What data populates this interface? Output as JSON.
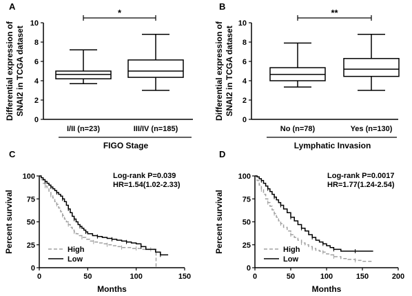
{
  "chart_data": [
    {
      "panel": "A",
      "type": "box",
      "ylabel": [
        "Differential expression of",
        "SNAI2 in TCGA dataset"
      ],
      "ylim": [
        0,
        10
      ],
      "yticks": [
        0,
        2,
        4,
        6,
        8,
        10
      ],
      "categories": [
        "I/II (n=23)",
        "III/IV (n=185)"
      ],
      "group_label": "FIGO Stage",
      "significance": "*",
      "boxes": [
        {
          "min": 3.7,
          "q1": 4.2,
          "median": 4.65,
          "q3": 5.0,
          "max": 7.2
        },
        {
          "min": 3.0,
          "q1": 4.35,
          "median": 5.0,
          "q3": 6.15,
          "max": 8.8
        }
      ]
    },
    {
      "panel": "B",
      "type": "box",
      "ylabel": [
        "Differential expression of",
        "SNAI2 in TCGA dataset"
      ],
      "ylim": [
        0,
        10
      ],
      "yticks": [
        0,
        2,
        4,
        6,
        8,
        10
      ],
      "categories": [
        "No (n=78)",
        "Yes (n=130)"
      ],
      "group_label": "Lymphatic Invasion",
      "significance": "**",
      "boxes": [
        {
          "min": 3.35,
          "q1": 4.0,
          "median": 4.65,
          "q3": 5.35,
          "max": 7.9
        },
        {
          "min": 3.0,
          "q1": 4.45,
          "median": 5.2,
          "q3": 6.3,
          "max": 8.8
        }
      ]
    },
    {
      "panel": "C",
      "type": "line",
      "xlabel": "Months",
      "ylabel": "Percent survival",
      "xlim": [
        0,
        150
      ],
      "ylim": [
        0,
        100
      ],
      "xticks": [
        0,
        50,
        100,
        150
      ],
      "yticks": [
        0,
        25,
        50,
        75,
        100
      ],
      "annotation": [
        "Log-rank P=0.039",
        "HR=1.54(1.02-2.33)"
      ],
      "legend_position": "bottom-left",
      "series": [
        {
          "name": "High",
          "color": "#a0a0a0",
          "dashed": true,
          "x": [
            0,
            2,
            4,
            6,
            8,
            10,
            12,
            14,
            16,
            18,
            20,
            22,
            24,
            26,
            28,
            30,
            32,
            34,
            36,
            38,
            40,
            44,
            48,
            52,
            56,
            60,
            65,
            70,
            75,
            80,
            85,
            90,
            95,
            100,
            105,
            110,
            115,
            120,
            120.5
          ],
          "y": [
            100,
            96,
            92,
            89,
            86,
            82,
            79,
            76,
            72,
            69,
            65,
            61,
            57,
            53,
            50,
            47,
            44,
            41,
            39,
            37,
            35,
            33,
            31,
            29,
            28,
            27,
            26,
            25,
            24,
            23,
            22,
            22,
            21,
            21,
            20,
            20,
            20,
            20,
            0
          ]
        },
        {
          "name": "Low",
          "color": "#000000",
          "dashed": false,
          "x": [
            0,
            2,
            4,
            6,
            8,
            10,
            12,
            14,
            16,
            18,
            20,
            22,
            24,
            26,
            28,
            30,
            32,
            34,
            36,
            38,
            40,
            42,
            44,
            46,
            48,
            50,
            55,
            60,
            65,
            70,
            75,
            80,
            85,
            90,
            95,
            100,
            105,
            110,
            120,
            125,
            133
          ],
          "y": [
            100,
            98,
            96,
            94,
            92,
            90,
            88,
            86,
            84,
            82,
            80,
            78,
            75,
            72,
            68,
            64,
            60,
            56,
            53,
            50,
            47,
            45,
            43,
            41,
            39,
            37,
            35,
            34,
            33,
            32,
            31,
            30,
            29,
            28,
            27,
            26,
            23,
            20,
            17,
            14,
            14
          ]
        }
      ]
    },
    {
      "panel": "D",
      "type": "line",
      "xlabel": "Months",
      "ylabel": "Percent survival",
      "xlim": [
        0,
        200
      ],
      "ylim": [
        0,
        100
      ],
      "xticks": [
        0,
        50,
        100,
        150,
        200
      ],
      "yticks": [
        0,
        25,
        50,
        75,
        100
      ],
      "annotation": [
        "Log-rank P=0.0017",
        "HR=1.77(1.24-2.54)"
      ],
      "legend_position": "bottom-left",
      "series": [
        {
          "name": "High",
          "color": "#a0a0a0",
          "dashed": true,
          "x": [
            0,
            3,
            6,
            9,
            12,
            15,
            18,
            21,
            24,
            27,
            30,
            33,
            36,
            40,
            45,
            50,
            55,
            60,
            65,
            70,
            75,
            80,
            85,
            90,
            95,
            100,
            105,
            110,
            120,
            130,
            140,
            150,
            165
          ],
          "y": [
            100,
            95,
            90,
            85,
            80,
            75,
            71,
            67,
            63,
            59,
            55,
            51,
            48,
            44,
            40,
            36,
            33,
            30,
            27,
            25,
            23,
            21,
            19,
            18,
            17,
            15,
            14,
            12,
            10,
            9,
            8,
            7,
            7
          ]
        },
        {
          "name": "Low",
          "color": "#000000",
          "dashed": false,
          "x": [
            0,
            3,
            6,
            9,
            12,
            15,
            18,
            21,
            24,
            27,
            30,
            33,
            36,
            40,
            45,
            50,
            55,
            60,
            65,
            70,
            75,
            80,
            85,
            90,
            95,
            100,
            105,
            110,
            120,
            130,
            140,
            150,
            165
          ],
          "y": [
            100,
            99,
            97,
            95,
            92,
            89,
            86,
            83,
            80,
            77,
            74,
            71,
            68,
            64,
            60,
            55,
            51,
            47,
            43,
            40,
            36,
            33,
            30,
            28,
            26,
            24,
            22,
            20,
            18,
            18,
            18,
            18,
            18
          ]
        }
      ]
    }
  ]
}
